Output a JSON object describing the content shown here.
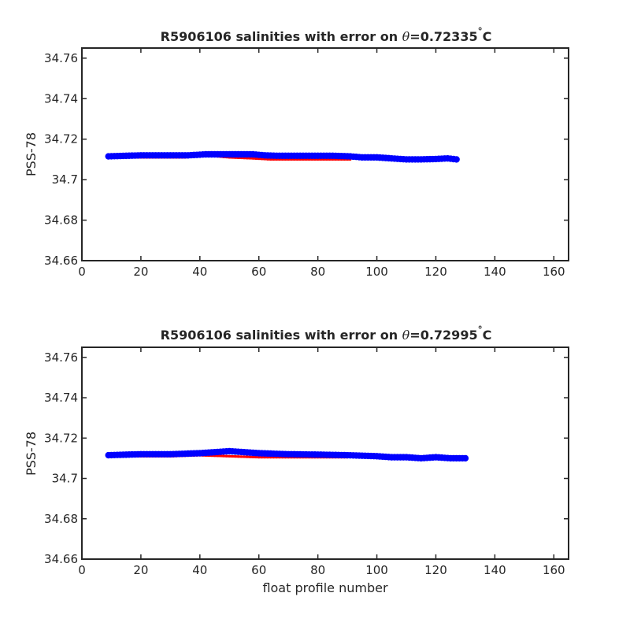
{
  "chart_data": [
    {
      "type": "scatter",
      "title_prefix": "R5906106 salinities with error on ",
      "title_theta": "θ",
      "title_value": "=0.72335",
      "title_deg": "°",
      "title_unit": "C",
      "xlabel": "",
      "ylabel": "PSS-78",
      "xlim": [
        0,
        165
      ],
      "ylim": [
        34.66,
        34.765
      ],
      "xticks": [
        0,
        20,
        40,
        60,
        80,
        100,
        120,
        140,
        160
      ],
      "yticks": [
        34.66,
        34.68,
        34.7,
        34.72,
        34.74,
        34.76
      ],
      "yticklabels": [
        "34.66",
        "34.68",
        "34.7",
        "34.72",
        "34.74",
        "34.76"
      ],
      "grid": false,
      "colors": {
        "mapped": "#ff0000",
        "error": "#00c040",
        "float": "#0000ff"
      },
      "series": [
        {
          "role": "mapped",
          "x": [
            9,
            20,
            35,
            42,
            50,
            58,
            64,
            70,
            80,
            91
          ],
          "y": [
            34.711,
            34.711,
            34.711,
            34.712,
            34.711,
            34.7105,
            34.71,
            34.71,
            34.71,
            34.71
          ]
        },
        {
          "role": "error",
          "x": [
            92,
            100,
            108,
            115,
            122,
            127
          ],
          "y": [
            34.7105,
            34.71,
            34.7095,
            34.7095,
            34.71,
            34.71
          ]
        },
        {
          "role": "float",
          "x": [
            9,
            20,
            30,
            36,
            42,
            50,
            58,
            62,
            66,
            75,
            85,
            91,
            95,
            100,
            105,
            110,
            115,
            120,
            124,
            127
          ],
          "y": [
            34.7115,
            34.712,
            34.712,
            34.712,
            34.7125,
            34.7125,
            34.7125,
            34.712,
            34.7118,
            34.7118,
            34.7118,
            34.7115,
            34.711,
            34.711,
            34.7105,
            34.71,
            34.71,
            34.7102,
            34.7105,
            34.71
          ]
        }
      ]
    },
    {
      "type": "scatter",
      "title_prefix": "R5906106 salinities with error on ",
      "title_theta": "θ",
      "title_value": "=0.72995",
      "title_deg": "°",
      "title_unit": "C",
      "xlabel": "float profile number",
      "ylabel": "PSS-78",
      "xlim": [
        0,
        165
      ],
      "ylim": [
        34.66,
        34.765
      ],
      "xticks": [
        0,
        20,
        40,
        60,
        80,
        100,
        120,
        140,
        160
      ],
      "yticks": [
        34.66,
        34.68,
        34.7,
        34.72,
        34.74,
        34.76
      ],
      "yticklabels": [
        "34.66",
        "34.68",
        "34.7",
        "34.72",
        "34.74",
        "34.76"
      ],
      "grid": false,
      "colors": {
        "mapped": "#ff0000",
        "error": "#00c040",
        "float": "#0000ff"
      },
      "series": [
        {
          "role": "mapped",
          "x": [
            9,
            20,
            30,
            40,
            50,
            60,
            70,
            80,
            90
          ],
          "y": [
            34.711,
            34.711,
            34.711,
            34.7115,
            34.711,
            34.7105,
            34.7105,
            34.7105,
            34.7105
          ]
        },
        {
          "role": "error",
          "x": [
            90,
            100,
            110,
            120,
            126,
            130
          ],
          "y": [
            34.711,
            34.711,
            34.7105,
            34.7105,
            34.7105,
            34.7105
          ]
        },
        {
          "role": "float",
          "x": [
            9,
            20,
            30,
            40,
            50,
            55,
            60,
            70,
            80,
            90,
            100,
            105,
            110,
            115,
            120,
            125,
            130
          ],
          "y": [
            34.7115,
            34.712,
            34.712,
            34.7125,
            34.7135,
            34.713,
            34.7125,
            34.712,
            34.7118,
            34.7115,
            34.711,
            34.7105,
            34.7105,
            34.71,
            34.7105,
            34.71,
            34.71
          ]
        }
      ]
    }
  ]
}
